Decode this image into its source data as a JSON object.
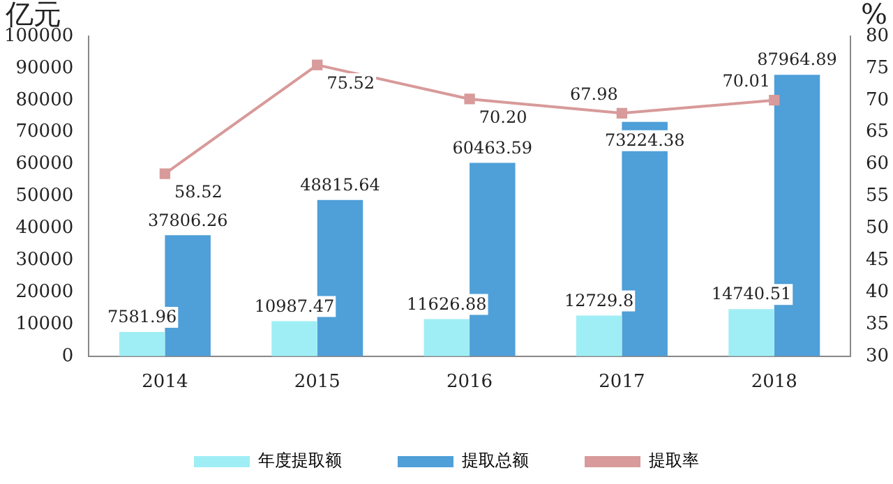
{
  "chart_data": {
    "type": "bar",
    "ylabel": "亿元",
    "y2label": "%",
    "categories": [
      "2014",
      "2015",
      "2016",
      "2017",
      "2018"
    ],
    "series": [
      {
        "name": "年度提取额",
        "color": "#a0eef5",
        "values": [
          7581.96,
          10987.47,
          11626.88,
          12729.8,
          14740.51
        ],
        "value_labels": [
          "7581.96",
          "10987.47",
          "11626.88",
          "12729.8",
          "14740.51"
        ]
      },
      {
        "name": "提取总额",
        "color": "#4f9fd8",
        "values": [
          37806.26,
          48815.64,
          60463.59,
          73224.38,
          87964.89
        ],
        "value_labels": [
          "37806.26",
          "48815.64",
          "60463.59",
          "73224.38",
          "87964.89"
        ]
      },
      {
        "name": "提取率",
        "type": "line",
        "axis": "y2",
        "color": "#d89a9a",
        "marker": "square",
        "values": [
          58.52,
          75.52,
          70.2,
          67.98,
          70.01
        ],
        "value_labels": [
          "58.52",
          "75.52",
          "70.20",
          "67.98",
          "70.01"
        ]
      }
    ],
    "ylim": [
      0,
      100000
    ],
    "yticks": [
      0,
      10000,
      20000,
      30000,
      40000,
      50000,
      60000,
      70000,
      80000,
      90000,
      100000
    ],
    "y2lim": [
      30,
      80
    ],
    "y2ticks": [
      30,
      35,
      40,
      45,
      50,
      55,
      60,
      65,
      70,
      75,
      80
    ],
    "legend": "bottom",
    "grid": false
  }
}
